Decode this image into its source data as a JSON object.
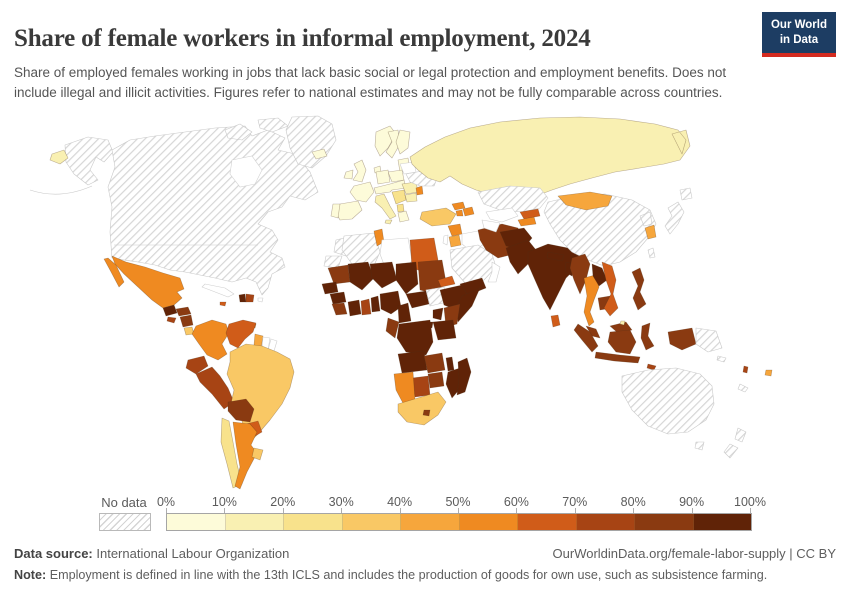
{
  "header": {
    "title": "Share of female workers in informal employment, 2024",
    "subtitle": "Share of employed females working in jobs that lack basic social or legal protection and employment benefits. Does not include illegal and illicit activities. Figures refer to national estimates and may not be fully comparable across countries.",
    "logo_line1": "Our World",
    "logo_line2": "in Data",
    "logo_bg": "#1d3d63",
    "logo_accent": "#d42b20"
  },
  "legend": {
    "no_data_label": "No data",
    "tick_labels": [
      "0%",
      "10%",
      "20%",
      "30%",
      "40%",
      "50%",
      "60%",
      "70%",
      "80%",
      "90%",
      "100%"
    ],
    "bin_colors": [
      "#fdfbd9",
      "#f9f0b2",
      "#f8e28c",
      "#f9c865",
      "#f6a63c",
      "#ef8a21",
      "#d05c19",
      "#a74414",
      "#8a3a11",
      "#602307"
    ]
  },
  "footer": {
    "source_label": "Data source:",
    "source_value": "International Labour Organization",
    "credit": "OurWorldinData.org/female-labor-supply | CC BY",
    "note_label": "Note:",
    "note_text": "Employment is defined in line with the 13th ICLS and includes the production of goods for own use, such as subsistence farming."
  },
  "chart_data": {
    "type": "choropleth_map",
    "title": "Share of female workers in informal employment, 2024",
    "unit": "%",
    "bins": [
      [
        0,
        10
      ],
      [
        10,
        20
      ],
      [
        20,
        30
      ],
      [
        30,
        40
      ],
      [
        40,
        50
      ],
      [
        50,
        60
      ],
      [
        60,
        70
      ],
      [
        70,
        80
      ],
      [
        80,
        90
      ],
      [
        90,
        100
      ]
    ],
    "no_data_style": "hatched",
    "countries": {
      "United States": "no-data",
      "Canada": "no-data",
      "Greenland": "no-data",
      "Cuba": "unmapped",
      "Puerto Rico": "unmapped",
      "Mexico": 55,
      "Guatemala": 91,
      "Honduras": 83,
      "El Salvador": 72,
      "Nicaragua": 86,
      "Costa Rica": 37,
      "Panama": 52,
      "Jamaica": 65,
      "Haiti": 95,
      "Dominican Republic": 75,
      "Trinidad and Tobago": 58,
      "Colombia": 57,
      "Venezuela": 64,
      "Guyana": 47,
      "Suriname": "unmapped",
      "French Guiana": "unmapped",
      "Ecuador": 74,
      "Peru": 76,
      "Brazil": 37,
      "Bolivia": 83,
      "Paraguay": 64,
      "Chile": 25,
      "Argentina": 52,
      "Uruguay": 35,
      "Iceland": 5,
      "United Kingdom": 4,
      "Ireland": 4,
      "Norway": 5,
      "Sweden": 5,
      "Finland": 5,
      "Denmark": 5,
      "Baltic states": 7,
      "Poland": 7,
      "Germany": 4,
      "France": 4,
      "Spain": 8,
      "Portugal": 8,
      "Italy": 12,
      "Central Europe": 7,
      "Balkans": 22,
      "Albania": 27,
      "Greece": 8,
      "Romania": 15,
      "Bulgaria": 12,
      "Moldova": 55,
      "Ukraine": "no-data",
      "Belarus": "unmapped",
      "Russia": 13,
      "Turkey": 35,
      "Georgia": 55,
      "Armenia": 52,
      "Azerbaijan": 56,
      "Morocco": "no-data",
      "Western Sahara": "no-data",
      "Algeria": "no-data",
      "Tunisia": 52,
      "Libya": "unmapped",
      "Egypt": 64,
      "Mauritania": 88,
      "Mali": 95,
      "Niger": 97,
      "Chad": 96,
      "Sudan": 88,
      "Senegal": 92,
      "Guinea": 94,
      "Sierra Leone": 86,
      "Cote d'Ivoire": 93,
      "Ghana": 77,
      "Togo and Benin": 93,
      "Nigeria": 93,
      "Cameroon": 92,
      "Central African Republic": 94,
      "South Sudan": "no-data",
      "Ethiopia": 93,
      "Eritrea": 63,
      "Somalia": 96,
      "Kenya": 84,
      "Uganda": 93,
      "Tanzania": 91,
      "Rwanda and Burundi": 90,
      "Democratic Republic of Congo": 96,
      "Congo and Gabon": 85,
      "Angola": 91,
      "Zambia": 88,
      "Malawi": 91,
      "Mozambique": 93,
      "Zimbabwe": 85,
      "Botswana": 74,
      "Namibia": 57,
      "South Africa": 36,
      "Lesotho": 83,
      "Madagascar": 94,
      "Syria": 53,
      "Israel": "unmapped",
      "Jordan": 48,
      "Iraq": "unmapped",
      "Saudi Arabia": "no-data",
      "Yemen": 92,
      "Oman": "unmapped",
      "Iran": 86,
      "Kazakhstan": "no-data",
      "Uzbekistan": "unmapped",
      "Turkmenistan": "unmapped",
      "Kyrgyzstan": 62,
      "Tajikistan": 58,
      "Afghanistan": 97,
      "Pakistan": 94,
      "India": 91,
      "Nepal": 96,
      "Bangladesh": 95,
      "Sri Lanka": 64,
      "China": "no-data",
      "Mongolia": 45,
      "North Korea": "no-data",
      "South Korea": 44,
      "Japan": "no-data",
      "Taiwan": "no-data",
      "Myanmar": 88,
      "Thailand": 55,
      "Laos": 90,
      "Cambodia": 88,
      "Vietnam": 63,
      "Malaysia": 85,
      "Brunei": 12,
      "Philippines": 84,
      "Indonesia": 87,
      "Timor": 75,
      "Papua New Guinea": "no-data",
      "Australia": "no-data",
      "New Zealand": "no-data",
      "Solomon Islands": "no-data",
      "New Caledonia": "no-data",
      "Vanuatu": 72,
      "Fiji": 48
    }
  }
}
